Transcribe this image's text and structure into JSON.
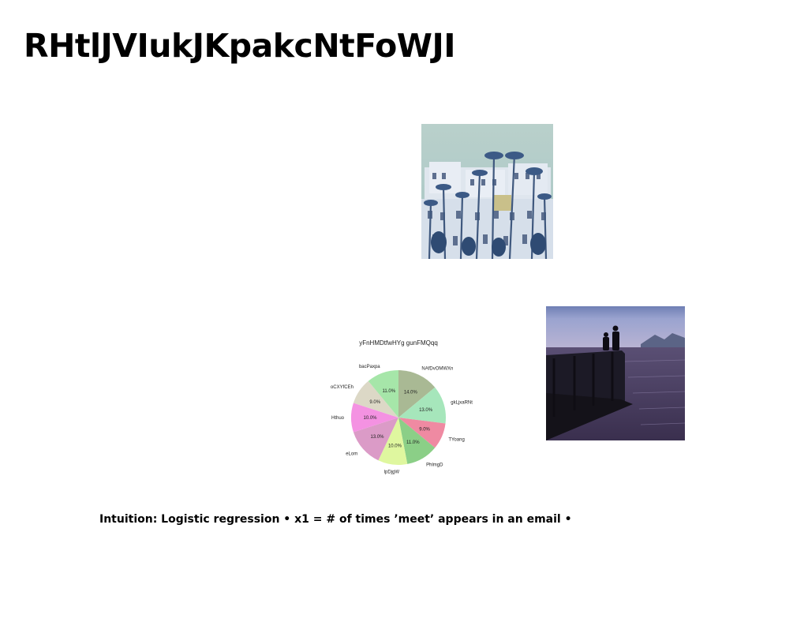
{
  "slide": {
    "title": "RHtlJVIukJKpakcNtFoWJI",
    "caption": "Intuition: Logistic regression • x1 = # of times ’meet’ appears in an email •"
  },
  "images": {
    "building": "photo-white-buildings-with-palm-trees",
    "pier": "photo-two-people-on-pier-at-dusk"
  },
  "chart_data": {
    "type": "pie",
    "title": "yFnHMDtfwHYg gunFMQqq",
    "slices": [
      {
        "label": "NAfDvOMWXn",
        "value": 14.0,
        "pct_label": "14.0%",
        "color": "#a9b994"
      },
      {
        "label": "gkLjxaRNt",
        "value": 13.0,
        "pct_label": "13.0%",
        "color": "#a6e6bb"
      },
      {
        "label": "TYoang",
        "value": 9.0,
        "pct_label": "9.0%",
        "color": "#ef8aa2"
      },
      {
        "label": "PhlmgD",
        "value": 11.0,
        "pct_label": "11.0%",
        "color": "#8bcf87"
      },
      {
        "label": "lpDjgW",
        "value": 10.0,
        "pct_label": "10.0%",
        "color": "#dff79f"
      },
      {
        "label": "eLom",
        "value": 13.0,
        "pct_label": "13.0%",
        "color": "#db9bc7"
      },
      {
        "label": "Hthuo",
        "value": 10.0,
        "pct_label": "10.0%",
        "color": "#f492e2"
      },
      {
        "label": "oCXYfCEh",
        "value": 9.0,
        "pct_label": "9.0%",
        "color": "#dcd8c6"
      },
      {
        "label": "bacPaxpa",
        "value": 11.0,
        "pct_label": "11.0%",
        "color": "#a6e6a9"
      }
    ]
  }
}
